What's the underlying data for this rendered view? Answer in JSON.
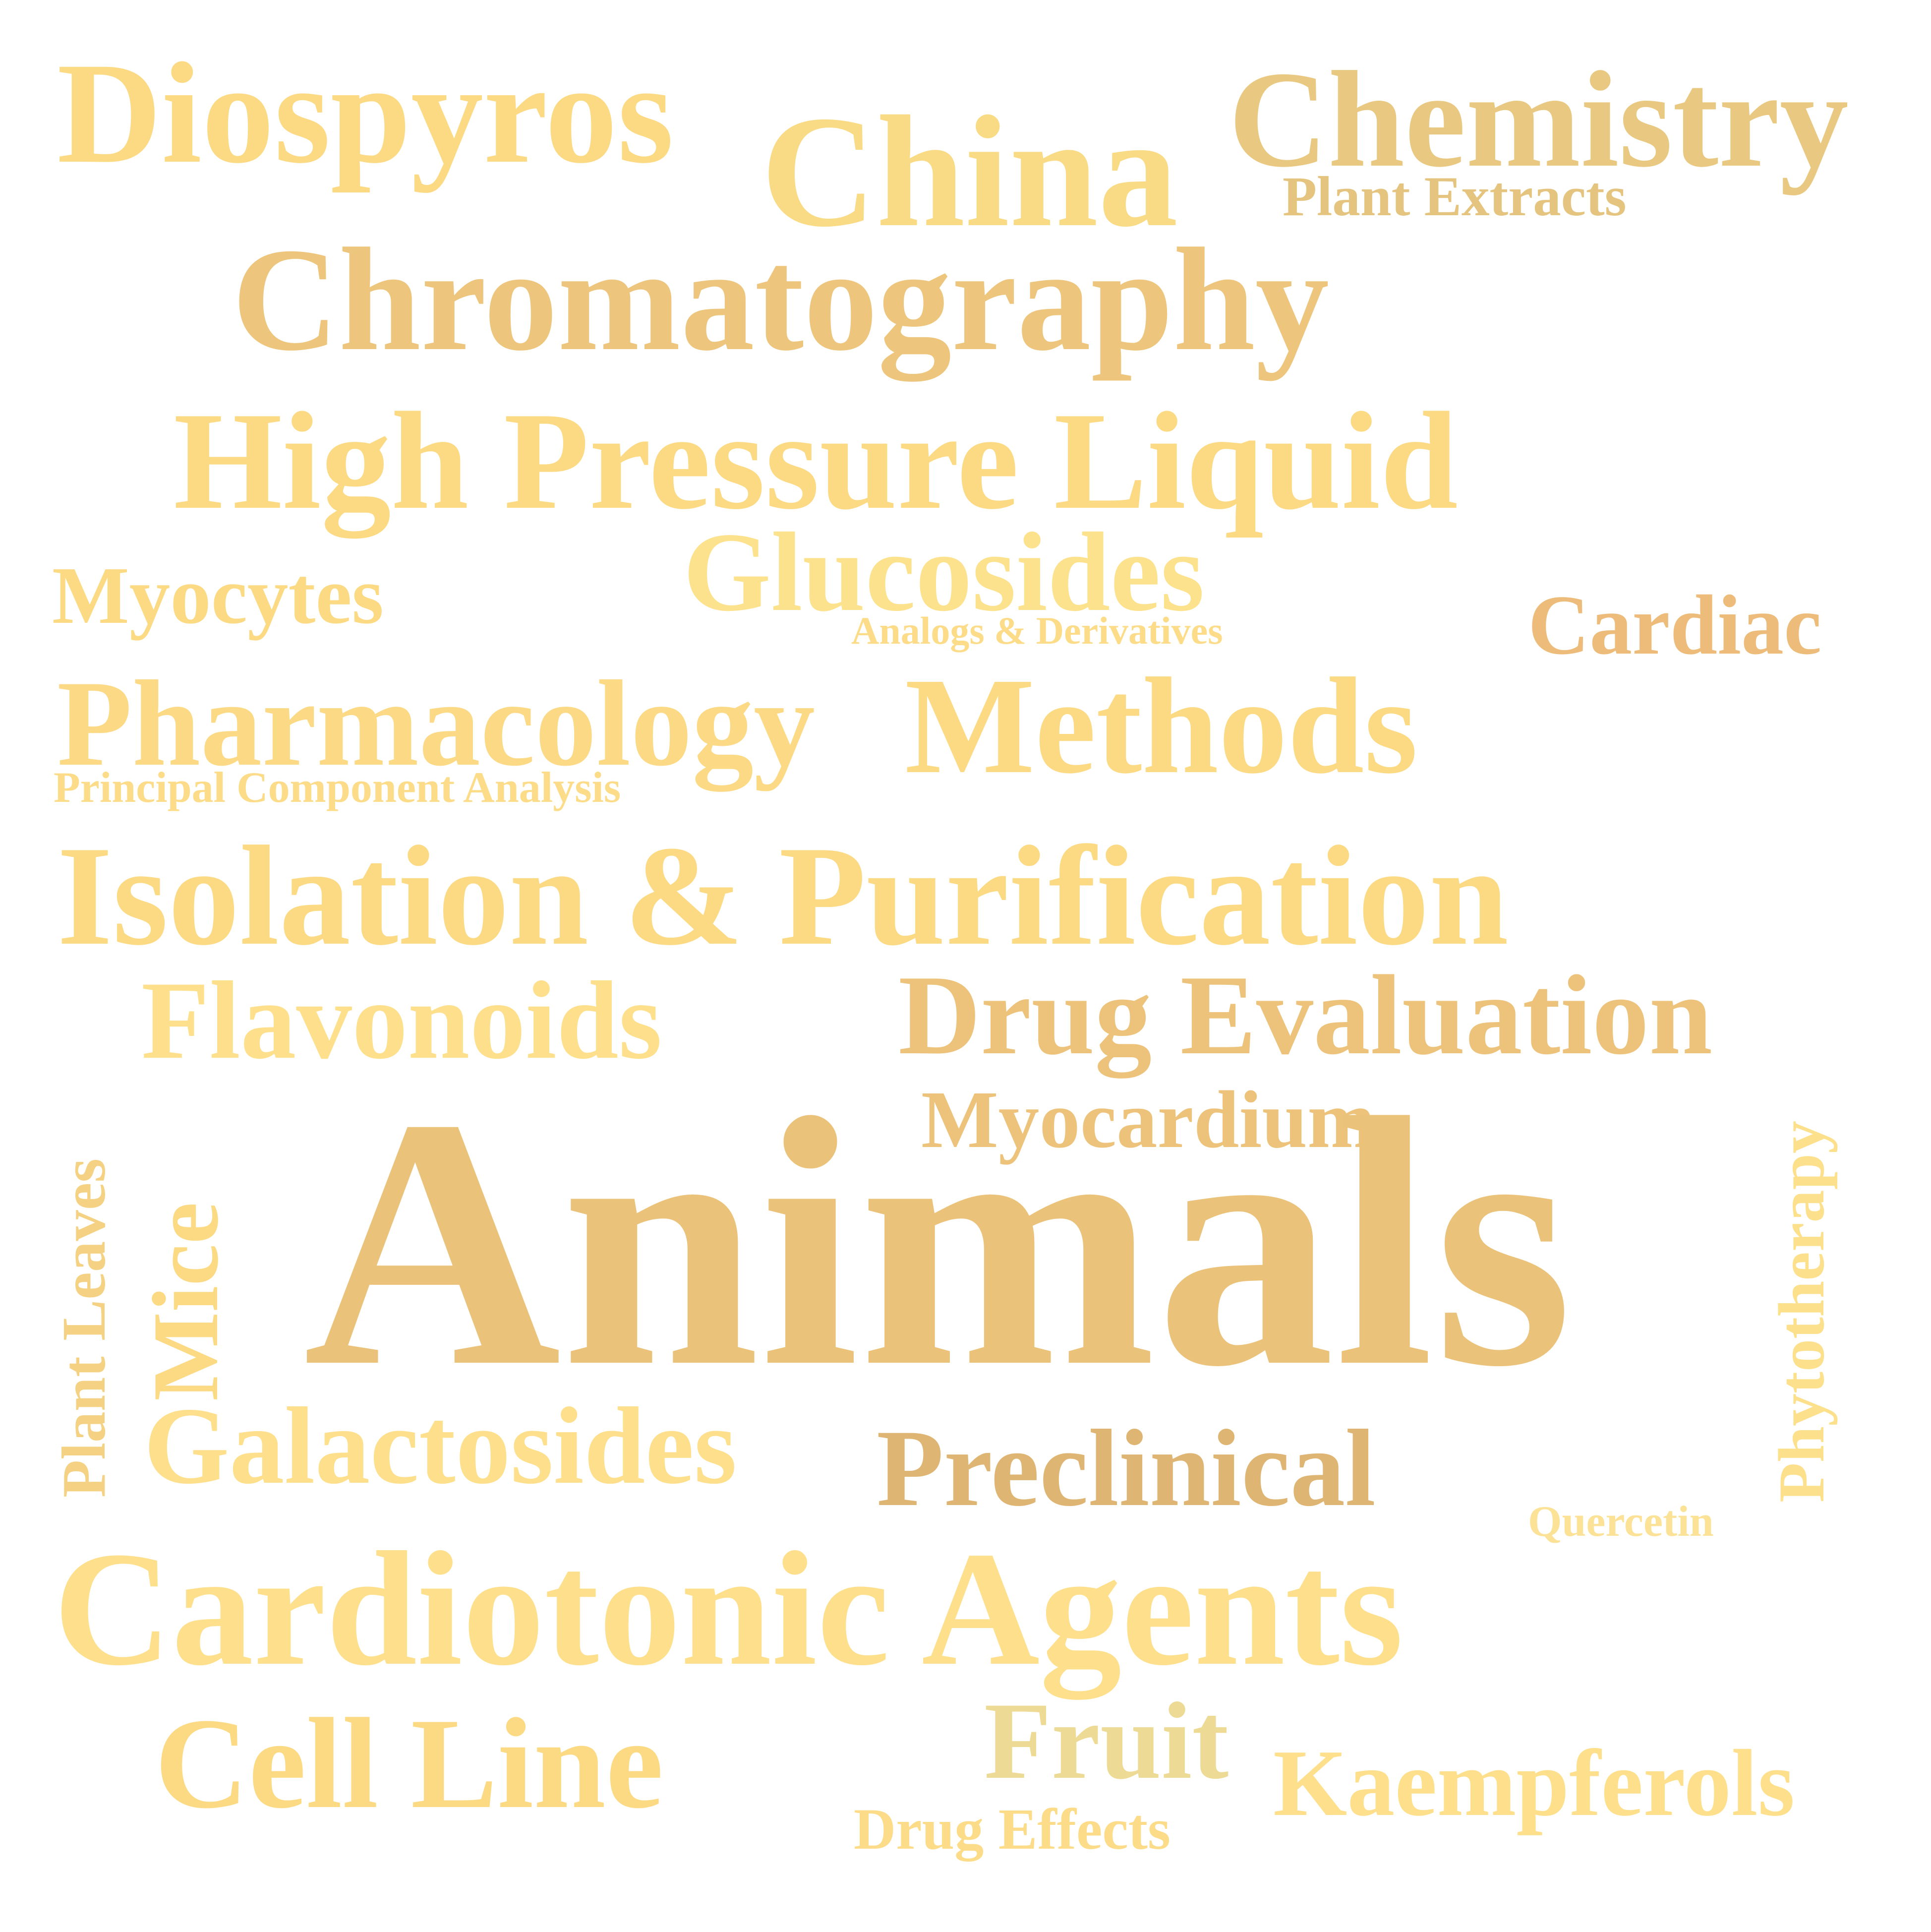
{
  "words": [
    {
      "id": "word-diospyros",
      "text": "Diospyros",
      "color": "#FCDA84"
    },
    {
      "id": "word-china",
      "text": "China",
      "color": "#F9DB85"
    },
    {
      "id": "word-chemistry",
      "text": "Chemistry",
      "color": "#E9C981"
    },
    {
      "id": "word-plant-extracts",
      "text": "Plant Extracts",
      "color": "#E4C47E"
    },
    {
      "id": "word-chromatography",
      "text": "Chromatography",
      "color": "#EDC57C"
    },
    {
      "id": "word-high-pressure-liquid",
      "text": "High Pressure Liquid",
      "color": "#FCDA84"
    },
    {
      "id": "word-glucosides",
      "text": "Glucosides",
      "color": "#FDE28E"
    },
    {
      "id": "word-analogs-derivatives",
      "text": "Analogs & Derivatives",
      "color": "#FCDC88"
    },
    {
      "id": "word-myocytes",
      "text": "Myocytes",
      "color": "#FCDA84"
    },
    {
      "id": "word-cardiac",
      "text": "Cardiac",
      "color": "#EDBC7A"
    },
    {
      "id": "word-pharmacology",
      "text": "Pharmacology",
      "color": "#FCD984"
    },
    {
      "id": "word-methods",
      "text": "Methods",
      "color": "#FCDA84"
    },
    {
      "id": "word-principal-component-analysis",
      "text": "Principal Component Analysis",
      "color": "#FCDC88"
    },
    {
      "id": "word-isolation-purification",
      "text": "Isolation & Purification",
      "color": "#FCDA84"
    },
    {
      "id": "word-flavonoids",
      "text": "Flavonoids",
      "color": "#FDDF8C"
    },
    {
      "id": "word-drug-evaluation",
      "text": "Drug Evaluation",
      "color": "#EDC27A"
    },
    {
      "id": "word-myocardium",
      "text": "Myocardium",
      "color": "#EDC27A"
    },
    {
      "id": "word-animals",
      "text": "Animals",
      "color": "#EBC27A"
    },
    {
      "id": "word-plant-leaves",
      "text": "Plant Leaves",
      "color": "#F5D283"
    },
    {
      "id": "word-mice",
      "text": "Mice",
      "color": "#FCDA84"
    },
    {
      "id": "word-phytotherapy",
      "text": "Phytotherapy",
      "color": "#FDE08C"
    },
    {
      "id": "word-galactosides",
      "text": "Galactosides",
      "color": "#FDDF8C"
    },
    {
      "id": "word-preclinical",
      "text": "Preclinical",
      "color": "#DFB574"
    },
    {
      "id": "word-quercetin",
      "text": "Quercetin",
      "color": "#FBE297"
    },
    {
      "id": "word-cardiotonic-agents",
      "text": "Cardiotonic Agents",
      "color": "#FDDF8C"
    },
    {
      "id": "word-cell-line",
      "text": "Cell Line",
      "color": "#FCDA84"
    },
    {
      "id": "word-fruit",
      "text": "Fruit",
      "color": "#EDDA94"
    },
    {
      "id": "word-kaempferols",
      "text": "Kaempferols",
      "color": "#FDDF8C"
    },
    {
      "id": "word-drug-effects",
      "text": "Drug Effects",
      "color": "#FCDC88"
    }
  ]
}
